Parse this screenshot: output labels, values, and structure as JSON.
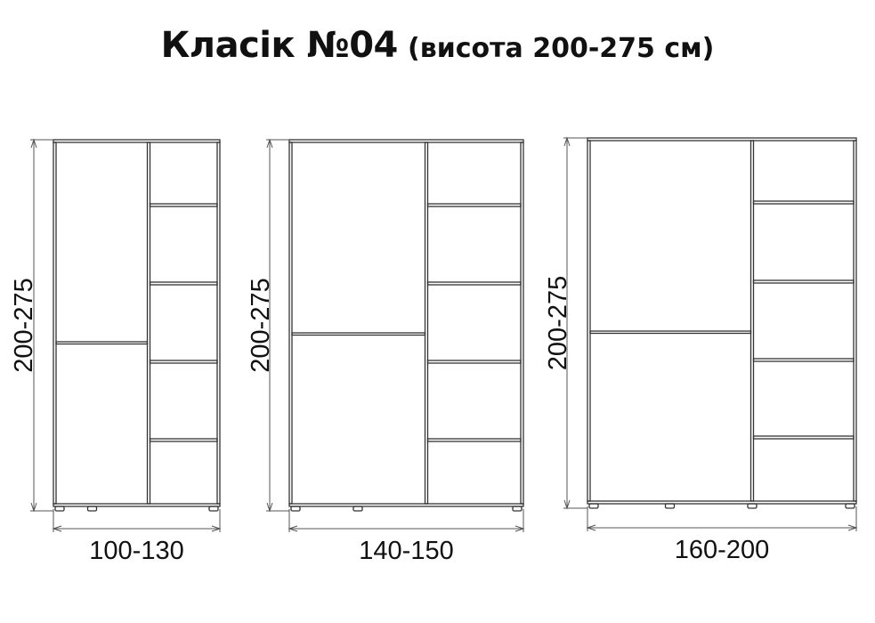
{
  "title": {
    "main": "Класік №04",
    "sub": "(висота 200-275 см)"
  },
  "wardrobes": [
    {
      "height_label": "200-275",
      "width_label": "100-130"
    },
    {
      "height_label": "200-275",
      "width_label": "140-150"
    },
    {
      "height_label": "200-275",
      "width_label": "160-200"
    }
  ],
  "colors": {
    "line": "#333333",
    "text": "#111111"
  }
}
